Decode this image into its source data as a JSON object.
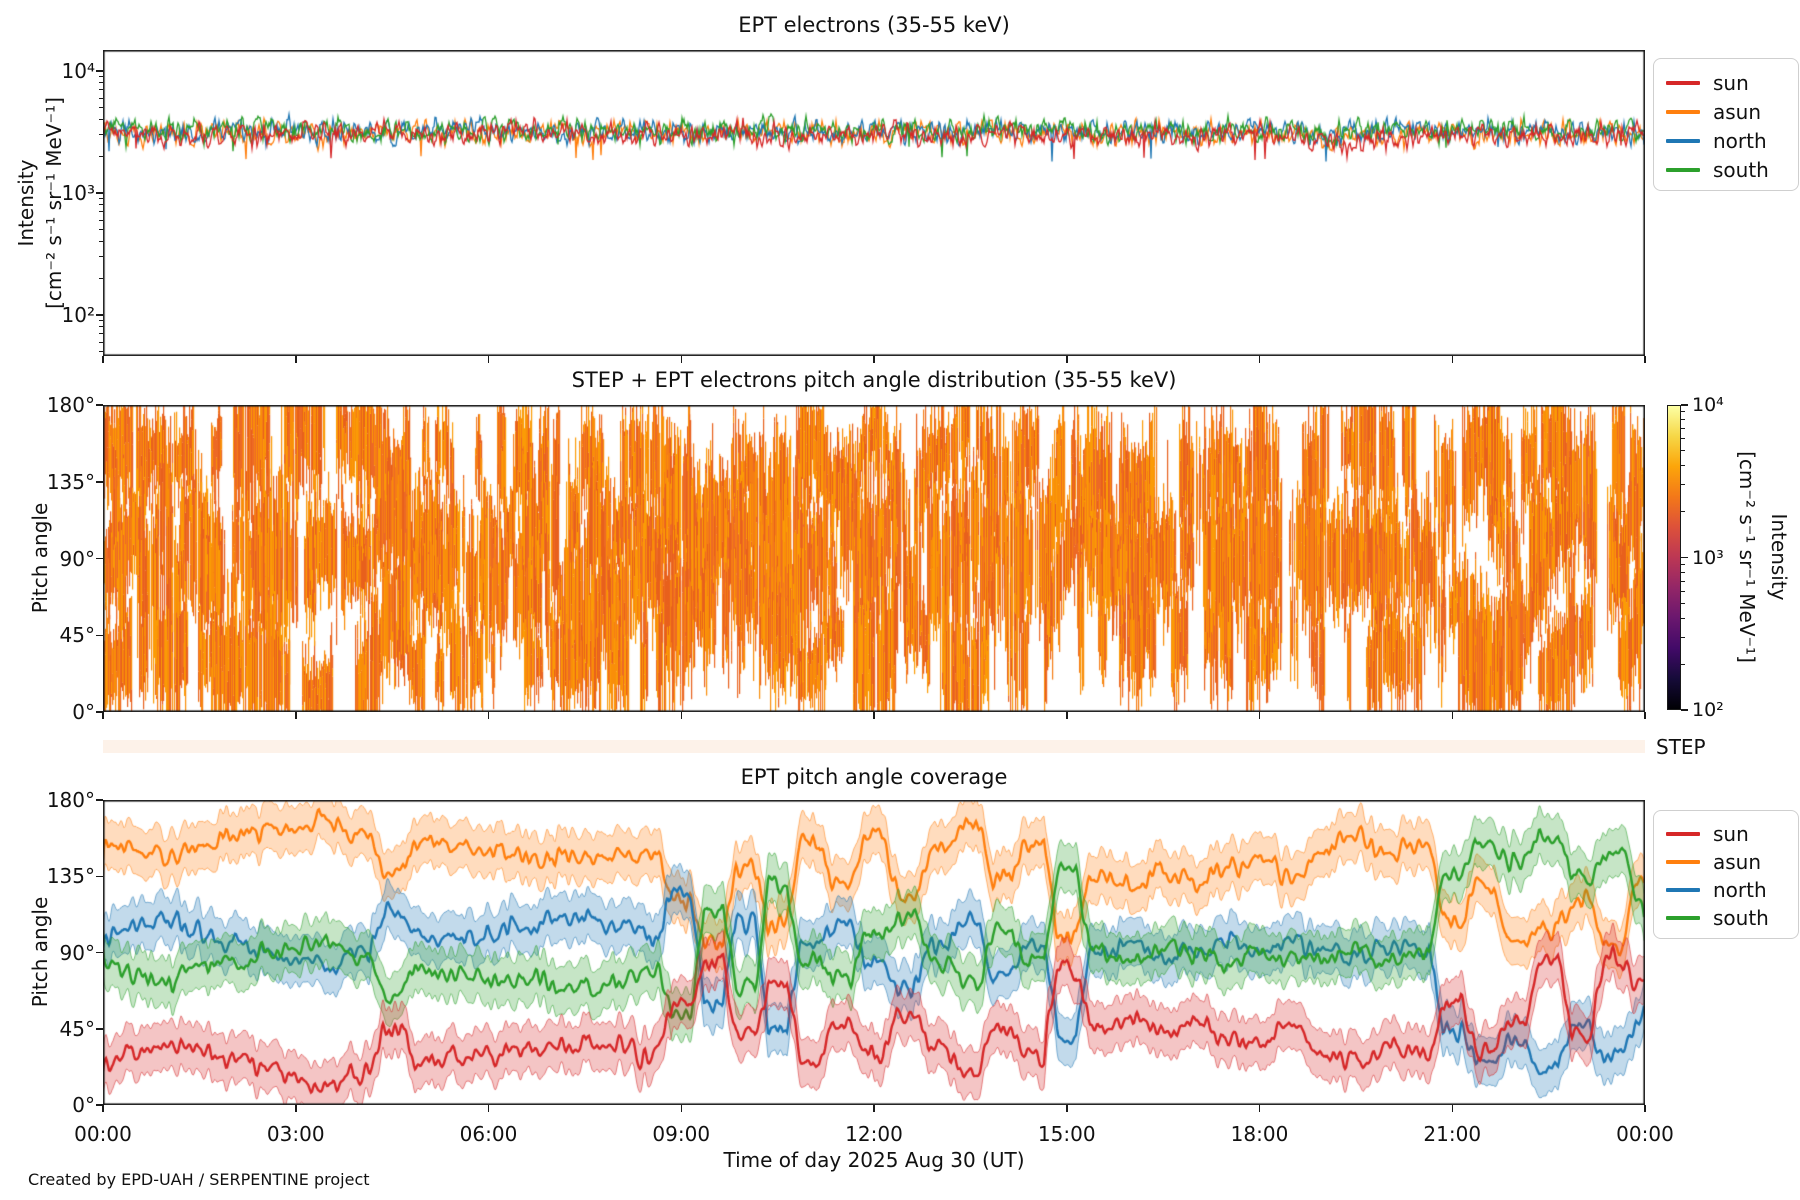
{
  "figure": {
    "footer": "Created by EPD-UAH / SERPENTINE project"
  },
  "axes": {
    "xlabel": "Time of day 2025 Aug 30 (UT)",
    "x_tick_labels": [
      "00:00",
      "03:00",
      "06:00",
      "09:00",
      "12:00",
      "15:00",
      "18:00",
      "21:00",
      "00:00"
    ],
    "x_tick_hours": [
      0,
      3,
      6,
      9,
      12,
      15,
      18,
      21,
      24
    ],
    "panel1": {
      "title": "EPT electrons (35-55 keV)",
      "ylabel_line1": "Intensity",
      "ylabel_line2": "[cm⁻² s⁻¹ sr⁻¹ MeV⁻¹]",
      "ytick_labels": [
        "10⁴",
        "10³",
        "10²"
      ],
      "yscale": "log"
    },
    "panel2": {
      "title": "STEP + EPT electrons pitch angle distribution (35-55 keV)",
      "ylabel": "Pitch angle",
      "ytick_labels": [
        "180°",
        "135°",
        "90°",
        "45°",
        "0°"
      ],
      "strip_label": "STEP",
      "strip_color": "#fdf2e9"
    },
    "colorbar": {
      "tick_labels": [
        "10⁴",
        "10³",
        "10²"
      ],
      "label_line1": "Intensity",
      "label_line2": "[cm⁻² s⁻¹ sr⁻¹ MeV⁻¹]",
      "scale": "log",
      "range": [
        100,
        10000
      ],
      "colormap": "inferno",
      "gradient_stops": [
        "#000004",
        "#160b39",
        "#420a68",
        "#6a176e",
        "#932667",
        "#bc3754",
        "#dd513a",
        "#f37819",
        "#fca50a",
        "#f6d746",
        "#fcffa4"
      ]
    },
    "panel3": {
      "title": "EPT pitch angle coverage",
      "ylabel": "Pitch angle",
      "ytick_labels": [
        "180°",
        "135°",
        "90°",
        "45°",
        "0°"
      ]
    }
  },
  "chart_data": [
    {
      "type": "line",
      "title": "EPT electrons (35-55 keV)",
      "ylabel": "Intensity [cm⁻² s⁻¹ sr⁻¹ MeV⁻¹]",
      "yscale": "log",
      "ylim": [
        46,
        12000
      ],
      "yticks": [
        100,
        1000,
        10000
      ],
      "x_unit": "hours_of_day",
      "x_start": 0,
      "x_end": 24,
      "x_step": 0.5,
      "legend_position": "outside-right",
      "series": [
        {
          "name": "sun",
          "color": "#d62728",
          "values": [
            3000,
            3150,
            2900,
            3050,
            3000,
            2880,
            3120,
            3230,
            3010,
            3380,
            3060,
            2940,
            3010,
            3120,
            3040,
            2970,
            3030,
            3090,
            2950,
            3000,
            3110,
            2890,
            3060,
            2940,
            3000,
            3090,
            2910,
            3020,
            3070,
            2930,
            3010,
            3100,
            2960,
            3050,
            2890,
            3000,
            3060,
            2840,
            2700,
            2580,
            2760,
            2900,
            2960,
            3010,
            2890,
            3000,
            2950,
            3060,
            3000
          ]
        },
        {
          "name": "asun",
          "color": "#ff7f0e",
          "values": [
            3100,
            3000,
            3200,
            3080,
            3150,
            3050,
            3180,
            3020,
            3120,
            3300,
            3090,
            3160,
            3040,
            3110,
            3190,
            3060,
            3130,
            3010,
            3150,
            3080,
            3040,
            3170,
            3090,
            3020,
            3140,
            3060,
            3180,
            3100,
            3030,
            3150,
            3070,
            3010,
            3160,
            3090,
            3020,
            3130,
            3050,
            2950,
            2850,
            2900,
            2980,
            3050,
            3100,
            3020,
            3090,
            3150,
            3040,
            3110,
            3060
          ]
        },
        {
          "name": "north",
          "color": "#1f77b4",
          "values": [
            3200,
            3280,
            3150,
            3220,
            3300,
            3180,
            3240,
            3160,
            3290,
            3210,
            3170,
            3260,
            3190,
            3230,
            3300,
            3150,
            3270,
            3200,
            3160,
            3240,
            3180,
            3290,
            3210,
            3150,
            3260,
            3190,
            3230,
            3170,
            3280,
            3200,
            3240,
            3160,
            3270,
            3190,
            3220,
            3150,
            3260,
            3100,
            3000,
            3080,
            3150,
            3210,
            3170,
            3250,
            3190,
            3230,
            3160,
            3270,
            3200
          ]
        },
        {
          "name": "south",
          "color": "#2ca02c",
          "values": [
            3300,
            3180,
            3350,
            3240,
            3290,
            3360,
            3220,
            3310,
            3260,
            3400,
            3280,
            3330,
            3210,
            3300,
            3250,
            3340,
            3270,
            3190,
            3320,
            3280,
            3230,
            3350,
            3260,
            3200,
            3310,
            3270,
            3340,
            3220,
            3290,
            3250,
            3330,
            3270,
            3200,
            3310,
            3240,
            3300,
            3260,
            3150,
            3060,
            3120,
            3200,
            3270,
            3220,
            3300,
            3250,
            3190,
            3310,
            3260,
            3230
          ]
        }
      ]
    },
    {
      "type": "heatmap",
      "title": "STEP + EPT electrons pitch angle distribution (35-55 keV)",
      "ylabel": "Pitch angle",
      "ylim": [
        0,
        180
      ],
      "yticks": [
        0,
        45,
        90,
        135,
        180
      ],
      "value_range": [
        100,
        10000
      ],
      "typical_value": 2500,
      "colormap": "inferno",
      "coverage_note": "orange coverage bands follow the four EPT telescope pitch-angle centers of the coverage panel",
      "band_halfwidth_deg": 22,
      "orange_palette": [
        "#e8601c",
        "#ed6925",
        "#f57d15",
        "#fb9b06",
        "#f98e09"
      ],
      "strip_label": "STEP"
    },
    {
      "type": "line+band",
      "title": "EPT pitch angle coverage",
      "ylabel": "Pitch angle",
      "ylim": [
        0,
        180
      ],
      "yticks": [
        0,
        45,
        90,
        135,
        180
      ],
      "x_unit": "hours_of_day",
      "x_start": 0,
      "x_end": 24,
      "x_step": 0.5,
      "band_halfwidth_deg": 14,
      "legend_position": "outside-right",
      "series": [
        {
          "name": "sun",
          "color": "#d62728",
          "values": [
            25,
            30,
            35,
            32,
            28,
            22,
            15,
            12,
            18,
            45,
            25,
            28,
            30,
            33,
            35,
            36,
            34,
            30,
            60,
            85,
            40,
            70,
            25,
            45,
            30,
            55,
            35,
            20,
            45,
            30,
            80,
            45,
            50,
            42,
            48,
            40,
            35,
            45,
            30,
            25,
            35,
            30,
            60,
            30,
            50,
            85,
            40,
            88,
            70
          ]
        },
        {
          "name": "asun",
          "color": "#ff7f0e",
          "values": [
            155,
            150,
            148,
            152,
            158,
            162,
            165,
            168,
            160,
            135,
            155,
            152,
            150,
            148,
            146,
            145,
            147,
            150,
            120,
            95,
            140,
            105,
            155,
            130,
            160,
            125,
            150,
            165,
            135,
            155,
            100,
            135,
            130,
            140,
            132,
            140,
            145,
            135,
            150,
            158,
            148,
            155,
            110,
            130,
            95,
            105,
            120,
            95,
            130
          ]
        },
        {
          "name": "north",
          "color": "#1f77b4",
          "values": [
            100,
            105,
            110,
            102,
            95,
            88,
            85,
            82,
            90,
            115,
            98,
            100,
            102,
            105,
            108,
            110,
            105,
            100,
            125,
            60,
            110,
            45,
            95,
            105,
            85,
            70,
            95,
            110,
            75,
            95,
            40,
            90,
            95,
            88,
            92,
            95,
            90,
            95,
            92,
            88,
            95,
            90,
            45,
            25,
            35,
            20,
            45,
            30,
            50
          ]
        },
        {
          "name": "south",
          "color": "#2ca02c",
          "values": [
            82,
            78,
            72,
            80,
            85,
            90,
            92,
            95,
            88,
            65,
            80,
            78,
            76,
            74,
            72,
            70,
            74,
            78,
            55,
            115,
            70,
            130,
            85,
            75,
            100,
            110,
            85,
            70,
            105,
            85,
            140,
            90,
            85,
            92,
            88,
            85,
            90,
            85,
            88,
            92,
            85,
            90,
            135,
            155,
            145,
            160,
            135,
            150,
            120
          ]
        }
      ]
    }
  ]
}
